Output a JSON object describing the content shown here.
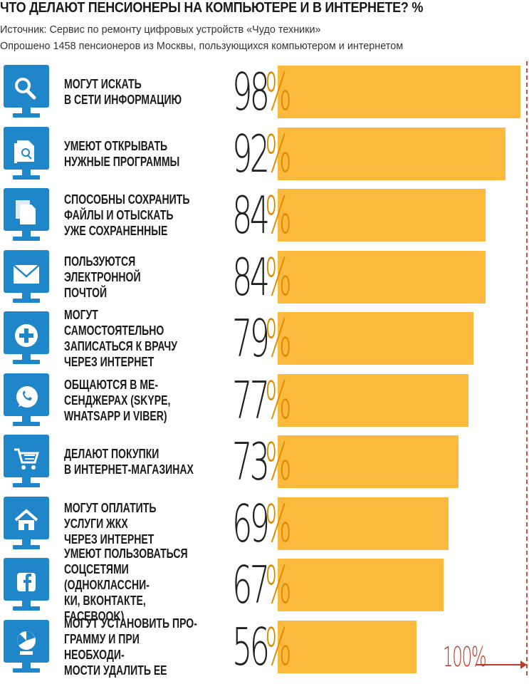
{
  "header": {
    "title": "ЧТО ДЕЛАЮТ ПЕНСИОНЕРЫ НА КОМПЬЮТЕРЕ И В ИНТЕРНЕТЕ? %",
    "source": "Источник: Сервис по ремонту цифровых устройств «Чудо техники»",
    "sample": "Опрошено 1458 пенсионеров из Москвы, пользующихся компьютером и интернетом"
  },
  "colors": {
    "bar": "#fbba3e",
    "monitor": "#1f86c9",
    "accent": "#e08a00",
    "guide": "#c0392b"
  },
  "guide_label": "100%",
  "chart_data": {
    "type": "bar",
    "orientation": "horizontal",
    "title": "ЧТО ДЕЛАЮТ ПЕНСИОНЕРЫ НА КОМПЬЮТЕРЕ И В ИНТЕРНЕТЕ? %",
    "xlim": [
      0,
      100
    ],
    "grid": false,
    "categories": [
      "МОГУТ ИСКАТЬ\nВ СЕТИ ИНФОРМАЦИЮ",
      "УМЕЮТ ОТКРЫВАТЬ\nНУЖНЫЕ ПРОГРАММЫ",
      "СПОСОБНЫ СОХРАНИТЬ\nФАЙЛЫ И ОТЫСКАТЬ\nУЖЕ СОХРАНЕННЫЕ",
      "ПОЛЬЗУЮТСЯ\nЭЛЕКТРОННОЙ\nПОЧТОЙ",
      "МОГУТ САМОСТОЯТЕЛЬНО\nЗАПИСАТЬСЯ К ВРАЧУ\nЧЕРЕЗ ИНТЕРНЕТ",
      "ОБЩАЮТСЯ В МЕ-\nСЕНДЖЕРАХ (SKYPE,\nWHATSAPP И VIBER)",
      "ДЕЛАЮТ ПОКУПКИ\nВ ИНТЕРНЕТ-МАГАЗИНАХ",
      "МОГУТ ОПЛАТИТЬ\nУСЛУГИ ЖКХ\nЧЕРЕЗ ИНТЕРНЕТ",
      "УМЕЮТ ПОЛЬЗОВАТЬСЯ\nСОЦСЕТЯМИ (ОДНОКЛАССНИ-\nКИ, ВКОНТАКТЕ, FACEBOOK)",
      "МОГУТ УСТАНОВИТЬ ПРО-\nГРАММУ И ПРИ НЕОБХОДИ-\nМОСТИ УДАЛИТЬ ЕЕ"
    ],
    "values": [
      98,
      92,
      84,
      84,
      79,
      77,
      73,
      69,
      67,
      56
    ],
    "value_labels": [
      "98",
      "92",
      "84",
      "84",
      "79",
      "77",
      "73",
      "69",
      "67",
      "56"
    ],
    "unit": "%",
    "icons": [
      "search-icon",
      "open-file-icon",
      "documents-icon",
      "mail-icon",
      "medical-plus-icon",
      "whatsapp-icon",
      "shopping-cart-icon",
      "house-icon",
      "facebook-icon",
      "install-icon"
    ]
  }
}
